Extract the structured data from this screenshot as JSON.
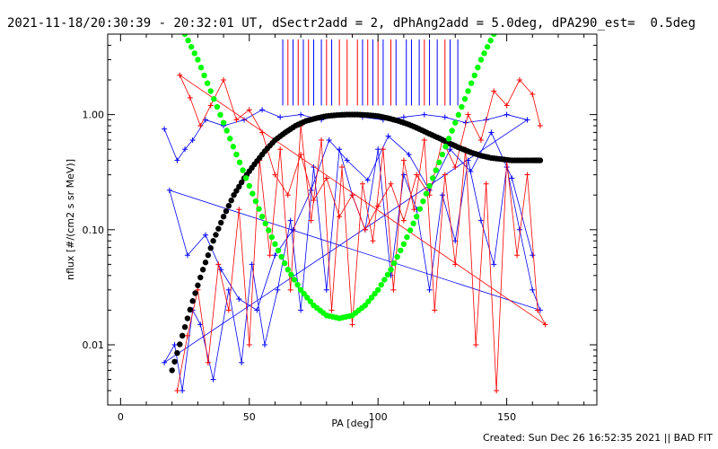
{
  "header": {
    "title": "2021-11-18/20:30:39 - 20:32:01 UT, dSectr2add = 2, dPhAng2add = 5.0deg, dPA290_est=  0.5deg"
  },
  "footer": {
    "created": "Created: Sun Dec 26 16:52:35 2021 || BAD FIT"
  },
  "chart_data": {
    "type": "line",
    "xlabel": "PA [deg]",
    "ylabel": "nflux [#/(cm2 s sr MeV)]",
    "xlim": [
      -5,
      185
    ],
    "ylim": [
      0.003,
      5
    ],
    "yscale": "log",
    "xticks": [
      0,
      50,
      100,
      150
    ],
    "yticks": [
      0.01,
      0.1,
      1.0
    ],
    "ytick_labels": [
      "0.01",
      "0.10",
      "1.00"
    ],
    "grid": false,
    "colors": {
      "blue": "#0000ff",
      "red": "#ff0000",
      "black": "#000000",
      "green": "#00ff00"
    },
    "series": [
      {
        "color": "blue",
        "style": "line+cross",
        "points": [
          [
            17,
            0.75
          ],
          [
            22,
            0.4
          ],
          [
            25,
            0.5
          ],
          [
            28,
            0.6
          ],
          [
            33,
            0.9
          ],
          [
            40,
            0.8
          ],
          [
            48,
            0.9
          ],
          [
            55,
            1.1
          ],
          [
            62,
            0.95
          ],
          [
            70,
            1.0
          ],
          [
            78,
            0.9
          ],
          [
            86,
            1.0
          ],
          [
            94,
            0.95
          ],
          [
            102,
            0.9
          ],
          [
            110,
            0.95
          ],
          [
            118,
            1.0
          ],
          [
            126,
            0.95
          ],
          [
            134,
            0.85
          ],
          [
            142,
            0.9
          ],
          [
            150,
            1.0
          ],
          [
            158,
            0.9
          ],
          [
            17,
            0.007
          ],
          [
            21,
            0.01
          ],
          [
            24,
            0.004
          ],
          [
            28,
            0.02
          ],
          [
            31,
            0.015
          ],
          [
            36,
            0.005
          ],
          [
            42,
            0.03
          ],
          [
            47,
            0.007
          ],
          [
            51,
            0.05
          ],
          [
            56,
            0.01
          ],
          [
            61,
            0.03
          ],
          [
            66,
            0.12
          ],
          [
            70,
            0.02
          ],
          [
            75,
            0.35
          ],
          [
            80,
            0.03
          ],
          [
            85,
            0.5
          ],
          [
            90,
            0.2
          ],
          [
            95,
            0.1
          ],
          [
            100,
            0.5
          ],
          [
            105,
            0.04
          ],
          [
            110,
            0.3
          ],
          [
            115,
            0.15
          ],
          [
            120,
            0.03
          ],
          [
            125,
            0.2
          ],
          [
            130,
            0.08
          ],
          [
            135,
            0.4
          ],
          [
            140,
            0.12
          ],
          [
            145,
            0.05
          ],
          [
            150,
            0.35
          ],
          [
            155,
            0.1
          ],
          [
            160,
            0.03
          ],
          [
            163,
            0.02
          ],
          [
            19,
            0.22
          ],
          [
            26,
            0.06
          ],
          [
            33,
            0.09
          ],
          [
            39,
            0.045
          ],
          [
            46,
            0.025
          ],
          [
            53,
            0.02
          ],
          [
            60,
            0.06
          ],
          [
            67,
            0.1
          ],
          [
            74,
            0.22
          ],
          [
            81,
            0.6
          ],
          [
            88,
            0.4
          ],
          [
            96,
            0.27
          ],
          [
            104,
            0.65
          ],
          [
            112,
            0.45
          ],
          [
            120,
            0.22
          ],
          [
            128,
            0.5
          ],
          [
            136,
            0.32
          ],
          [
            144,
            0.7
          ],
          [
            152,
            0.28
          ],
          [
            160,
            0.06
          ]
        ]
      },
      {
        "color": "red",
        "style": "line+cross",
        "points": [
          [
            22,
            0.004
          ],
          [
            26,
            0.012
          ],
          [
            30,
            0.03
          ],
          [
            34,
            0.007
          ],
          [
            38,
            0.05
          ],
          [
            42,
            0.02
          ],
          [
            46,
            0.15
          ],
          [
            50,
            0.01
          ],
          [
            54,
            0.4
          ],
          [
            58,
            0.06
          ],
          [
            62,
            0.5
          ],
          [
            66,
            0.03
          ],
          [
            70,
            0.8
          ],
          [
            74,
            0.12
          ],
          [
            78,
            0.6
          ],
          [
            82,
            0.02
          ],
          [
            86,
            0.35
          ],
          [
            90,
            0.015
          ],
          [
            94,
            0.25
          ],
          [
            98,
            0.08
          ],
          [
            102,
            0.5
          ],
          [
            106,
            0.03
          ],
          [
            110,
            0.4
          ],
          [
            114,
            0.15
          ],
          [
            118,
            0.6
          ],
          [
            122,
            0.02
          ],
          [
            126,
            0.3
          ],
          [
            130,
            0.05
          ],
          [
            134,
            0.5
          ],
          [
            138,
            0.01
          ],
          [
            142,
            0.25
          ],
          [
            146,
            0.004
          ],
          [
            150,
            0.4
          ],
          [
            154,
            0.06
          ],
          [
            158,
            0.3
          ],
          [
            162,
            0.02
          ],
          [
            165,
            0.015
          ],
          [
            23,
            2.2
          ],
          [
            27,
            1.4
          ],
          [
            31,
            0.8
          ],
          [
            35,
            1.2
          ],
          [
            40,
            2.0
          ],
          [
            45,
            0.9
          ],
          [
            50,
            1.1
          ],
          [
            55,
            0.7
          ],
          [
            60,
            0.3
          ],
          [
            65,
            0.2
          ],
          [
            70,
            0.45
          ],
          [
            75,
            0.18
          ],
          [
            80,
            0.28
          ],
          [
            85,
            0.13
          ],
          [
            90,
            0.2
          ],
          [
            95,
            0.1
          ],
          [
            100,
            0.16
          ],
          [
            105,
            0.25
          ],
          [
            110,
            0.12
          ],
          [
            115,
            0.3
          ],
          [
            120,
            0.2
          ],
          [
            125,
            0.6
          ],
          [
            130,
            0.35
          ],
          [
            135,
            1.0
          ],
          [
            140,
            0.6
          ],
          [
            145,
            1.6
          ],
          [
            150,
            1.2
          ],
          [
            155,
            2.0
          ],
          [
            160,
            1.5
          ],
          [
            163,
            0.8
          ]
        ]
      },
      {
        "name": "",
        "color": "black",
        "style": "dots",
        "points": [
          [
            20,
            0.006
          ],
          [
            24,
            0.012
          ],
          [
            28,
            0.024
          ],
          [
            32,
            0.045
          ],
          [
            36,
            0.08
          ],
          [
            40,
            0.13
          ],
          [
            44,
            0.2
          ],
          [
            48,
            0.28
          ],
          [
            52,
            0.37
          ],
          [
            56,
            0.48
          ],
          [
            60,
            0.6
          ],
          [
            64,
            0.7
          ],
          [
            68,
            0.8
          ],
          [
            72,
            0.88
          ],
          [
            76,
            0.93
          ],
          [
            80,
            0.97
          ],
          [
            84,
            0.99
          ],
          [
            88,
            1.0
          ],
          [
            92,
            1.0
          ],
          [
            96,
            0.99
          ],
          [
            100,
            0.97
          ],
          [
            104,
            0.93
          ],
          [
            108,
            0.88
          ],
          [
            112,
            0.82
          ],
          [
            116,
            0.75
          ],
          [
            120,
            0.68
          ],
          [
            124,
            0.62
          ],
          [
            128,
            0.56
          ],
          [
            132,
            0.51
          ],
          [
            136,
            0.47
          ],
          [
            140,
            0.44
          ],
          [
            144,
            0.42
          ],
          [
            148,
            0.41
          ],
          [
            152,
            0.4
          ],
          [
            156,
            0.4
          ],
          [
            160,
            0.4
          ],
          [
            163,
            0.4
          ]
        ]
      },
      {
        "name": "",
        "color": "green",
        "style": "dots",
        "points": [
          [
            25,
            5.0
          ],
          [
            30,
            3.0
          ],
          [
            35,
            1.6
          ],
          [
            40,
            0.85
          ],
          [
            45,
            0.45
          ],
          [
            50,
            0.24
          ],
          [
            55,
            0.13
          ],
          [
            60,
            0.075
          ],
          [
            65,
            0.045
          ],
          [
            70,
            0.03
          ],
          [
            75,
            0.022
          ],
          [
            80,
            0.018
          ],
          [
            85,
            0.017
          ],
          [
            90,
            0.018
          ],
          [
            95,
            0.022
          ],
          [
            100,
            0.03
          ],
          [
            105,
            0.045
          ],
          [
            110,
            0.075
          ],
          [
            115,
            0.13
          ],
          [
            120,
            0.24
          ],
          [
            125,
            0.45
          ],
          [
            130,
            0.85
          ],
          [
            135,
            1.6
          ],
          [
            140,
            3.0
          ],
          [
            145,
            5.0
          ]
        ]
      }
    ],
    "vertical_markers": {
      "y_from": 1.2,
      "y_to": 4.5,
      "blue_x": [
        63,
        67,
        71,
        75,
        78,
        82,
        94,
        98,
        102,
        107,
        111,
        113,
        116,
        120,
        123,
        128,
        131
      ],
      "red_x": [
        65,
        69,
        73,
        80,
        85,
        88,
        92,
        96,
        100,
        105,
        118,
        126
      ]
    }
  }
}
